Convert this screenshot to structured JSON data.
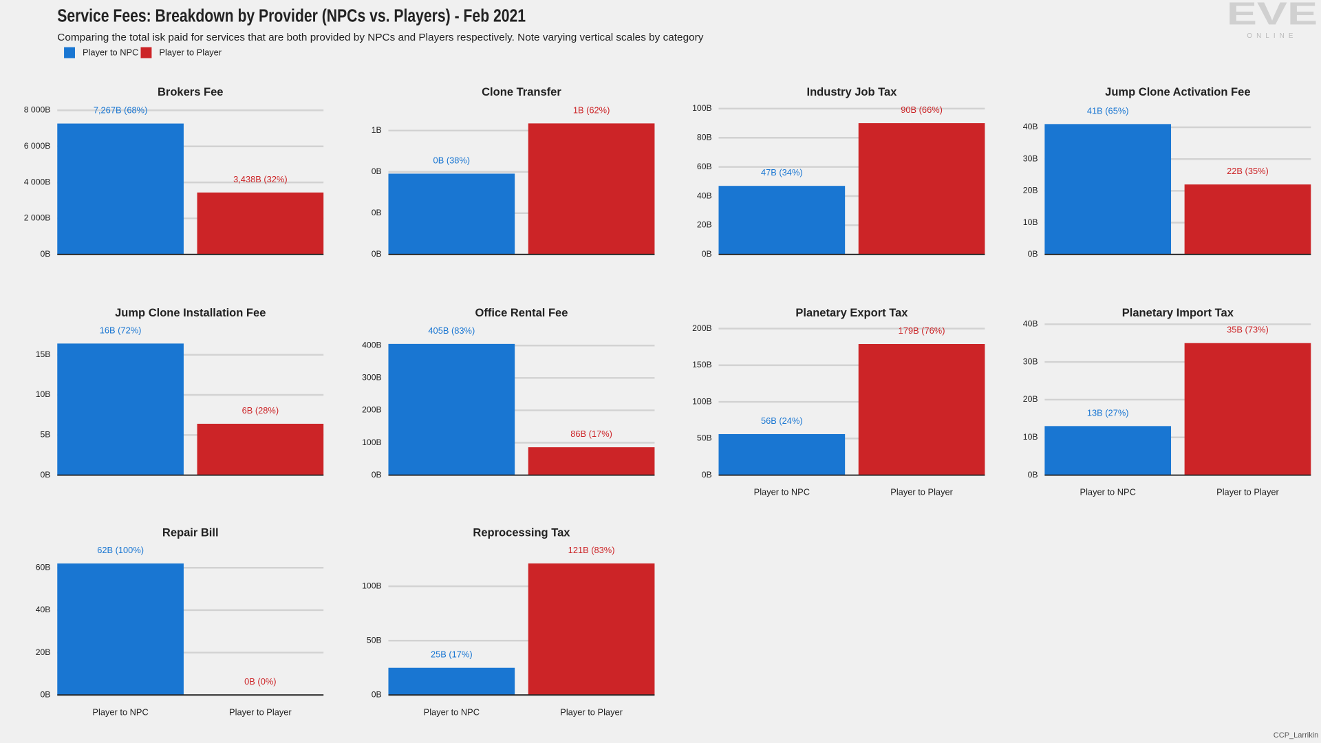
{
  "header": {
    "title": "Service Fees: Breakdown by Provider (NPCs vs. Players) - Feb 2021",
    "subtitle": "Comparing the total isk paid for services that are both provided by NPCs and Players respectively. Note varying vertical scales by category"
  },
  "legend": [
    {
      "name": "Player to NPC",
      "color": "#1976d2"
    },
    {
      "name": "Player to Player",
      "color": "#cc2427"
    }
  ],
  "logo": {
    "name": "EVE",
    "sub": "ONLINE"
  },
  "credit": "CCP_Larrikin",
  "chart_data": [
    {
      "type": "bar",
      "title": "Brokers Fee",
      "values": [
        7267,
        3438
      ],
      "value_labels": [
        "7,267B (68%)",
        "3,438B (32%)"
      ],
      "colors": [
        "#1976d2",
        "#cc2427"
      ],
      "ylim": [
        0,
        8420
      ],
      "yticks": [
        {
          "value": 0,
          "label": "0B"
        },
        {
          "value": 2000,
          "label": "2 000B"
        },
        {
          "value": 4000,
          "label": "4 000B"
        },
        {
          "value": 6000,
          "label": "6 000B"
        },
        {
          "value": 8000,
          "label": "8 000B"
        }
      ]
    },
    {
      "type": "bar",
      "title": "Clone Transfer",
      "values": [
        0.45,
        0.73
      ],
      "value_labels": [
        "0B (38%)",
        "1B (62%)"
      ],
      "colors": [
        "#1976d2",
        "#cc2427"
      ],
      "ylim": [
        0,
        0.845
      ],
      "yticks": [
        {
          "value": 0,
          "label": "0B"
        },
        {
          "value": 0.23,
          "label": "0B"
        },
        {
          "value": 0.46,
          "label": "0B"
        },
        {
          "value": 0.69,
          "label": "1B"
        }
      ]
    },
    {
      "type": "bar",
      "title": "Industry Job Tax",
      "values": [
        47,
        90
      ],
      "value_labels": [
        "47B (34%)",
        "90B (66%)"
      ],
      "colors": [
        "#1976d2",
        "#cc2427"
      ],
      "ylim": [
        0,
        104
      ],
      "yticks": [
        {
          "value": 0,
          "label": "0B"
        },
        {
          "value": 20,
          "label": "20B"
        },
        {
          "value": 40,
          "label": "40B"
        },
        {
          "value": 60,
          "label": "60B"
        },
        {
          "value": 80,
          "label": "80B"
        },
        {
          "value": 100,
          "label": "100B"
        }
      ]
    },
    {
      "type": "bar",
      "title": "Jump Clone Activation Fee",
      "values": [
        41,
        22
      ],
      "value_labels": [
        "41B (65%)",
        "22B (35%)"
      ],
      "colors": [
        "#1976d2",
        "#cc2427"
      ],
      "ylim": [
        0,
        47.7
      ],
      "yticks": [
        {
          "value": 0,
          "label": "0B"
        },
        {
          "value": 10,
          "label": "10B"
        },
        {
          "value": 20,
          "label": "20B"
        },
        {
          "value": 30,
          "label": "30B"
        },
        {
          "value": 40,
          "label": "40B"
        }
      ]
    },
    {
      "type": "bar",
      "title": "Jump Clone Installation Fee",
      "values": [
        16.4,
        6.4
      ],
      "value_labels": [
        "16B (72%)",
        "6B (28%)"
      ],
      "colors": [
        "#1976d2",
        "#cc2427"
      ],
      "ylim": [
        0,
        18.9
      ],
      "yticks": [
        {
          "value": 0,
          "label": "0B"
        },
        {
          "value": 5,
          "label": "5B"
        },
        {
          "value": 10,
          "label": "10B"
        },
        {
          "value": 15,
          "label": "15B"
        }
      ]
    },
    {
      "type": "bar",
      "title": "Office Rental Fee",
      "values": [
        405,
        86
      ],
      "value_labels": [
        "405B (83%)",
        "86B (17%)"
      ],
      "colors": [
        "#1976d2",
        "#cc2427"
      ],
      "ylim": [
        0,
        468
      ],
      "yticks": [
        {
          "value": 0,
          "label": "0B"
        },
        {
          "value": 100,
          "label": "100B"
        },
        {
          "value": 200,
          "label": "200B"
        },
        {
          "value": 300,
          "label": "300B"
        },
        {
          "value": 400,
          "label": "400B"
        }
      ]
    },
    {
      "type": "bar",
      "title": "Planetary Export Tax",
      "categories": [
        "Player to NPC",
        "Player to Player"
      ],
      "values": [
        56,
        179
      ],
      "value_labels": [
        "56B (24%)",
        "179B (76%)"
      ],
      "colors": [
        "#1976d2",
        "#cc2427"
      ],
      "ylim": [
        0,
        207
      ],
      "yticks": [
        {
          "value": 0,
          "label": "0B"
        },
        {
          "value": 50,
          "label": "50B"
        },
        {
          "value": 100,
          "label": "100B"
        },
        {
          "value": 150,
          "label": "150B"
        },
        {
          "value": 200,
          "label": "200B"
        }
      ]
    },
    {
      "type": "bar",
      "title": "Planetary Import Tax",
      "categories": [
        "Player to NPC",
        "Player to Player"
      ],
      "values": [
        13,
        35
      ],
      "value_labels": [
        "13B (27%)",
        "35B (73%)"
      ],
      "colors": [
        "#1976d2",
        "#cc2427"
      ],
      "ylim": [
        0,
        40.2
      ],
      "yticks": [
        {
          "value": 0,
          "label": "0B"
        },
        {
          "value": 10,
          "label": "10B"
        },
        {
          "value": 20,
          "label": "20B"
        },
        {
          "value": 30,
          "label": "30B"
        },
        {
          "value": 40,
          "label": "40B"
        }
      ]
    },
    {
      "type": "bar",
      "title": "Repair Bill",
      "categories": [
        "Player to NPC",
        "Player to Player"
      ],
      "values": [
        62,
        0
      ],
      "value_labels": [
        "62B (100%)",
        "0B (0%)"
      ],
      "colors": [
        "#1976d2",
        "#cc2427"
      ],
      "ylim": [
        0,
        71.5
      ],
      "yticks": [
        {
          "value": 0,
          "label": "0B"
        },
        {
          "value": 20,
          "label": "20B"
        },
        {
          "value": 40,
          "label": "40B"
        },
        {
          "value": 60,
          "label": "60B"
        }
      ]
    },
    {
      "type": "bar",
      "title": "Reprocessing Tax",
      "categories": [
        "Player to NPC",
        "Player to Player"
      ],
      "values": [
        25,
        121
      ],
      "value_labels": [
        "25B (17%)",
        "121B (83%)"
      ],
      "colors": [
        "#1976d2",
        "#cc2427"
      ],
      "ylim": [
        0,
        139.5
      ],
      "yticks": [
        {
          "value": 0,
          "label": "0B"
        },
        {
          "value": 50,
          "label": "50B"
        },
        {
          "value": 100,
          "label": "100B"
        }
      ]
    }
  ]
}
